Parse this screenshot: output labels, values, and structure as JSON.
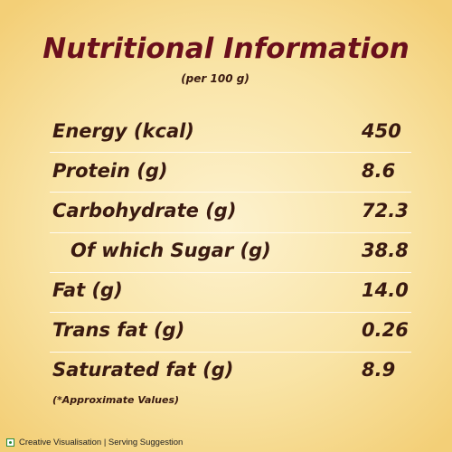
{
  "header": {
    "title": "Nutritional Information",
    "subtitle": "(per 100 g)"
  },
  "table": {
    "rows": [
      [
        "Energy (kcal)",
        "450"
      ],
      [
        "Protein (g)",
        "8.6"
      ],
      [
        "Carbohydrate (g)",
        "72.3"
      ],
      [
        "Of which Sugar (g)",
        "38.8"
      ],
      [
        "Fat (g)",
        "14.0"
      ],
      [
        "Trans fat (g)",
        "0.26"
      ],
      [
        "Saturated fat (g)",
        "8.9"
      ]
    ]
  },
  "footnote": "(*Approximate Values)",
  "disclaimer": "Creative Visualisation | Serving Suggestion"
}
